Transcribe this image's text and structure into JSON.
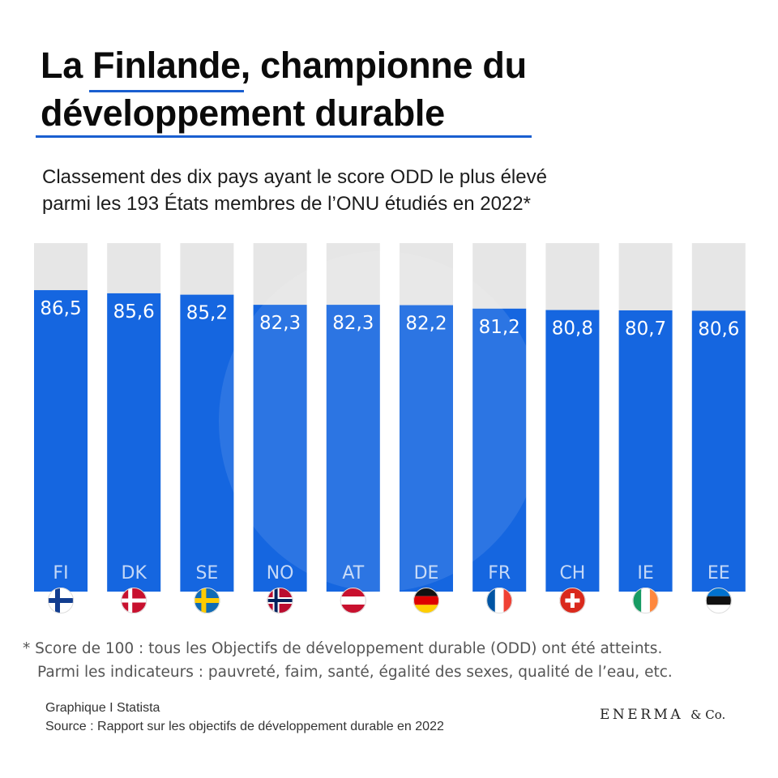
{
  "header": {
    "title_part1": "La ",
    "title_highlight": "Finlande",
    "title_part2": ", championne du",
    "title_line2": "développement durable",
    "subtitle_line1": "Classement des dix pays ayant le score ODD le plus élevé",
    "subtitle_line2": "parmi les 193 États membres de l’ONU étudiés en 2022*",
    "accent_color": "#1a5fd0"
  },
  "chart_data": {
    "type": "bar",
    "title": "Classement des dix pays ayant le score ODD le plus élevé",
    "categories": [
      "FI",
      "DK",
      "SE",
      "NO",
      "AT",
      "DE",
      "FR",
      "CH",
      "IE",
      "EE"
    ],
    "values": [
      86.5,
      85.6,
      85.2,
      82.3,
      82.3,
      82.2,
      81.2,
      80.8,
      80.7,
      80.6
    ],
    "value_labels": [
      "86,5",
      "85,6",
      "85,2",
      "82,3",
      "82,3",
      "82,2",
      "81,2",
      "80,8",
      "80,7",
      "80,6"
    ],
    "flags": [
      "Finlande",
      "Danemark",
      "Suède",
      "Norvège",
      "Autriche",
      "Allemagne",
      "France",
      "Suisse",
      "Irlande",
      "Estonie"
    ],
    "ylim": [
      0,
      100
    ],
    "xlabel": "",
    "ylabel": "",
    "bar_color": "#1566e0",
    "track_color": "#e6e6e6"
  },
  "footnote": {
    "line1": "* Score de 100 : tous les Objectifs de développement durable (ODD) ont été atteints.",
    "line2": "Parmi les indicateurs : pauvreté, faim, santé, égalité des sexes, qualité de l’eau, etc."
  },
  "credits": {
    "graphic": "Graphique I Statista",
    "source": "Source : Rapport sur les objectifs de développement durable en 2022"
  },
  "brand": {
    "name": "ENERMA",
    "suffix": "& Co."
  }
}
